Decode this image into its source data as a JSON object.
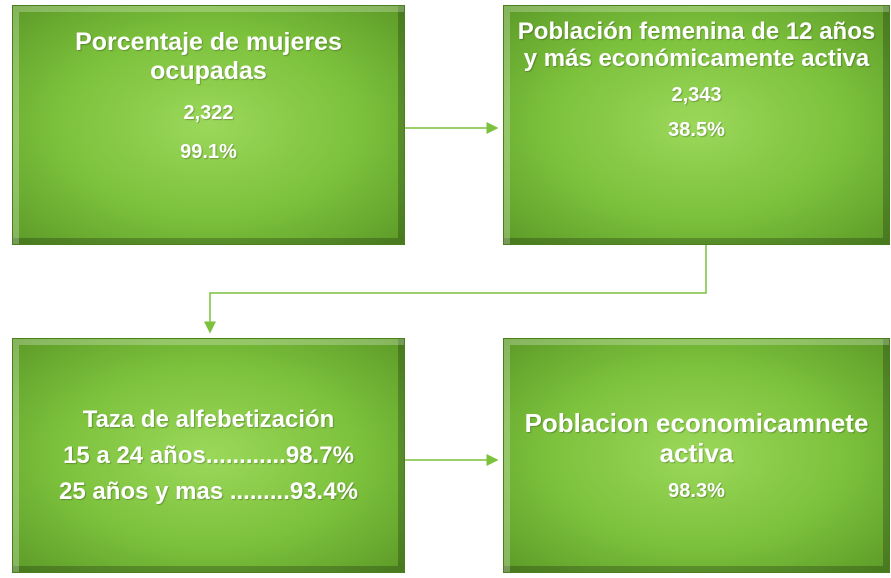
{
  "nodes": [
    {
      "title": "Porcentaje de mujeres ocupadas",
      "values": [
        "2,322",
        "99.1%"
      ]
    },
    {
      "title": "Población femenina de 12 años y más económicamente activa",
      "values": [
        "2,343",
        "38.5%"
      ]
    },
    {
      "title": "Taza de alfebetización",
      "values": [
        "15 a 24 años............98.7%",
        "25 años y mas .........93.4%"
      ]
    },
    {
      "title": "Poblacion economicamnete activa",
      "values": [
        "98.3%"
      ]
    }
  ]
}
